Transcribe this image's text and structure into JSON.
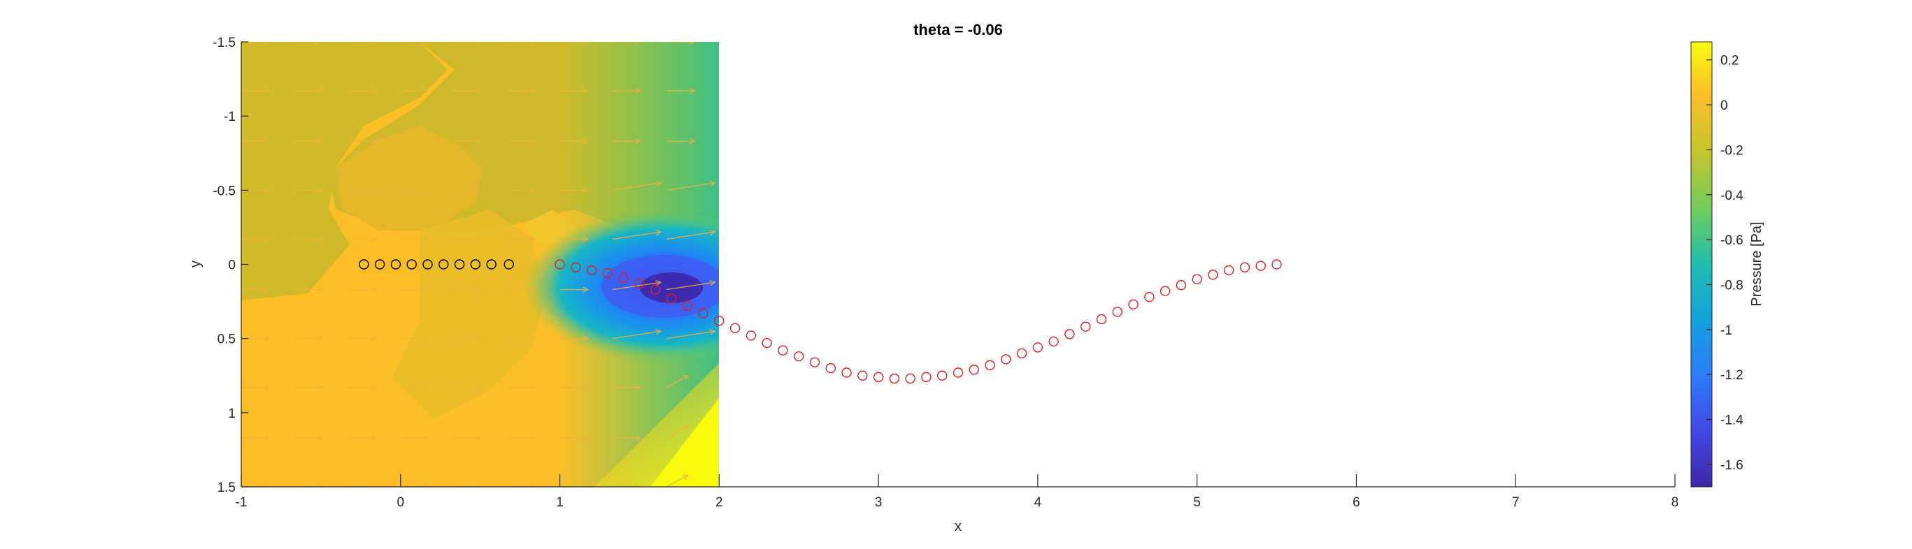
{
  "chart_data": {
    "type": "scatter",
    "title": "theta = -0.06",
    "xlabel": "x",
    "ylabel": "y",
    "xlim": [
      -1,
      8
    ],
    "ylim": [
      -1.5,
      1.5
    ],
    "y_direction": "reversed",
    "xticks": [
      -1,
      0,
      1,
      2,
      3,
      4,
      5,
      6,
      7,
      8
    ],
    "yticks": [
      -1.5,
      -1,
      -0.5,
      0,
      0.5,
      1,
      1.5
    ],
    "pressure_field": {
      "x_range": [
        -1,
        2
      ],
      "y_range": [
        -1.5,
        1.5
      ],
      "description_colors": [
        "#f9fb0e",
        "#fbbe27",
        "#cfb92a",
        "#6fcb5f",
        "#16b6c4",
        "#1b8ef1",
        "#3d5df3",
        "#3e26a8"
      ]
    },
    "colorbar": {
      "label": "Pressure [Pa]",
      "range": [
        -1.7,
        0.28
      ],
      "ticks": [
        0.2,
        0,
        -0.2,
        -0.4,
        -0.6,
        -0.8,
        -1,
        -1.2,
        -1.4,
        -1.6
      ]
    },
    "series": [
      {
        "color": "#000000",
        "marker": "circle-open",
        "x": [
          -0.23,
          -0.13,
          -0.03,
          0.07,
          0.17,
          0.27,
          0.37,
          0.47,
          0.57,
          0.68
        ],
        "y": [
          0,
          0,
          0,
          0,
          0,
          0,
          0,
          0,
          0,
          0
        ]
      },
      {
        "color": "#dd2222",
        "marker": "circle-open",
        "x": [
          1.0,
          1.1,
          1.2,
          1.3,
          1.4,
          1.5,
          1.6,
          1.7,
          1.8,
          1.9,
          2.0,
          2.1,
          2.2,
          2.3,
          2.4,
          2.5,
          2.6,
          2.7,
          2.8,
          2.9,
          3.0,
          3.1,
          3.2,
          3.3,
          3.4,
          3.5,
          3.6,
          3.7,
          3.8,
          3.9,
          4.0,
          4.1,
          4.2,
          4.3,
          4.4,
          4.5,
          4.6,
          4.7,
          4.8,
          4.9,
          5.0,
          5.1,
          5.2,
          5.3,
          5.4,
          5.5
        ],
        "y": [
          0.0,
          0.02,
          0.04,
          0.06,
          0.09,
          0.13,
          0.17,
          0.23,
          0.28,
          0.33,
          0.38,
          0.43,
          0.48,
          0.53,
          0.58,
          0.62,
          0.66,
          0.7,
          0.73,
          0.75,
          0.76,
          0.77,
          0.77,
          0.76,
          0.75,
          0.73,
          0.71,
          0.68,
          0.64,
          0.6,
          0.56,
          0.52,
          0.47,
          0.42,
          0.37,
          0.32,
          0.27,
          0.22,
          0.18,
          0.14,
          0.1,
          0.07,
          0.04,
          0.02,
          0.01,
          0.0
        ]
      }
    ]
  }
}
